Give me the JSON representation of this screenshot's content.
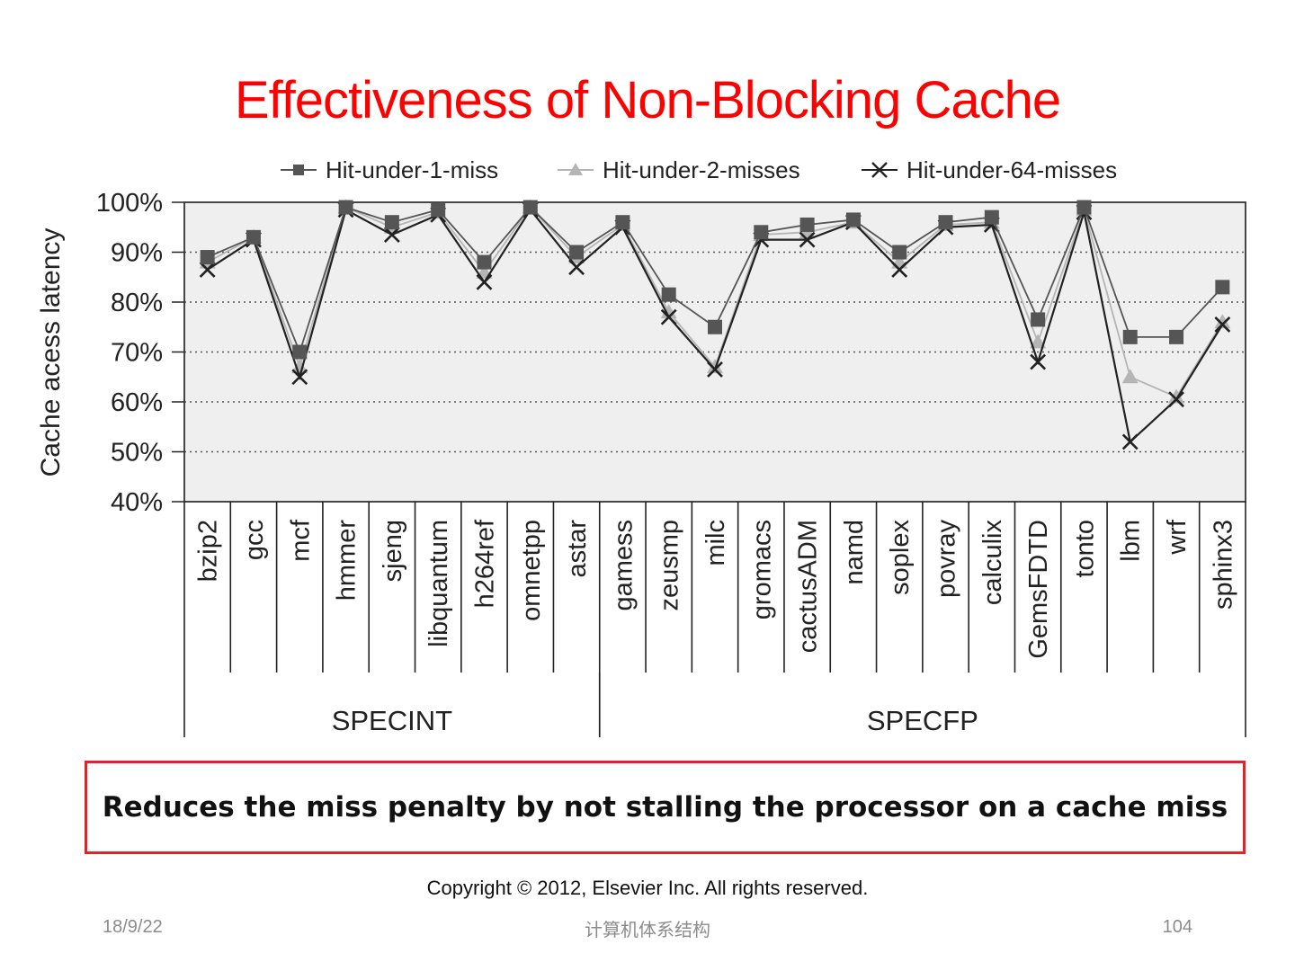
{
  "slide": {
    "title": "Effectiveness of Non-Blocking Cache",
    "callout": "Reduces the miss penalty by not stalling the processor on a cache miss",
    "copyright": "Copyright © 2012, Elsevier Inc. All rights reserved.",
    "footer": {
      "date": "18/9/22",
      "center": "计算机体系结构",
      "page": "104"
    }
  },
  "colors": {
    "title": "#ff0000",
    "callout_border": "#e0242b",
    "s1": "#555555",
    "s2": "#b5b5b5",
    "s3": "#222222",
    "plot_bg": "#efefef"
  },
  "chart_data": {
    "type": "line",
    "title": "",
    "xlabel": "",
    "ylabel": "Cache acess latency",
    "ylim": [
      40,
      100
    ],
    "yticks": [
      "40%",
      "50%",
      "60%",
      "70%",
      "80%",
      "90%",
      "100%"
    ],
    "grid": "dotted horizontal",
    "legend": "top",
    "categories": [
      "bzip2",
      "gcc",
      "mcf",
      "hmmer",
      "sjeng",
      "libquantum",
      "h264ref",
      "omnetpp",
      "astar",
      "gamess",
      "zeusmp",
      "milc",
      "gromacs",
      "cactusADM",
      "namd",
      "soplex",
      "povray",
      "calculix",
      "GemsFDTD",
      "tonto",
      "lbm",
      "wrf",
      "sphinx3"
    ],
    "groups": [
      {
        "name": "SPECINT",
        "count": 9
      },
      {
        "name": "SPECFP",
        "count": 14
      }
    ],
    "series": [
      {
        "name": "Hit-under-1-miss",
        "marker": "square",
        "values": [
          89,
          93,
          70,
          99,
          96,
          98.5,
          88,
          99,
          90,
          96,
          81.5,
          75,
          94,
          95.5,
          96.5,
          90,
          96,
          97,
          76.5,
          99,
          73,
          73,
          83
        ]
      },
      {
        "name": "Hit-under-2-misses",
        "marker": "triangle",
        "values": [
          88,
          93,
          67,
          99,
          95,
          98,
          86,
          99,
          89,
          95.5,
          78,
          67,
          93.5,
          94,
          96,
          88,
          95.5,
          96,
          72,
          98.5,
          65,
          61,
          76
        ]
      },
      {
        "name": "Hit-under-64-misses",
        "marker": "x",
        "values": [
          86.5,
          92.5,
          65,
          98.5,
          93.5,
          97.5,
          84,
          98.5,
          87,
          95,
          77,
          66.5,
          92.5,
          92.5,
          96,
          86.5,
          95,
          95.5,
          68,
          98,
          52,
          60.5,
          75.5
        ]
      }
    ]
  }
}
